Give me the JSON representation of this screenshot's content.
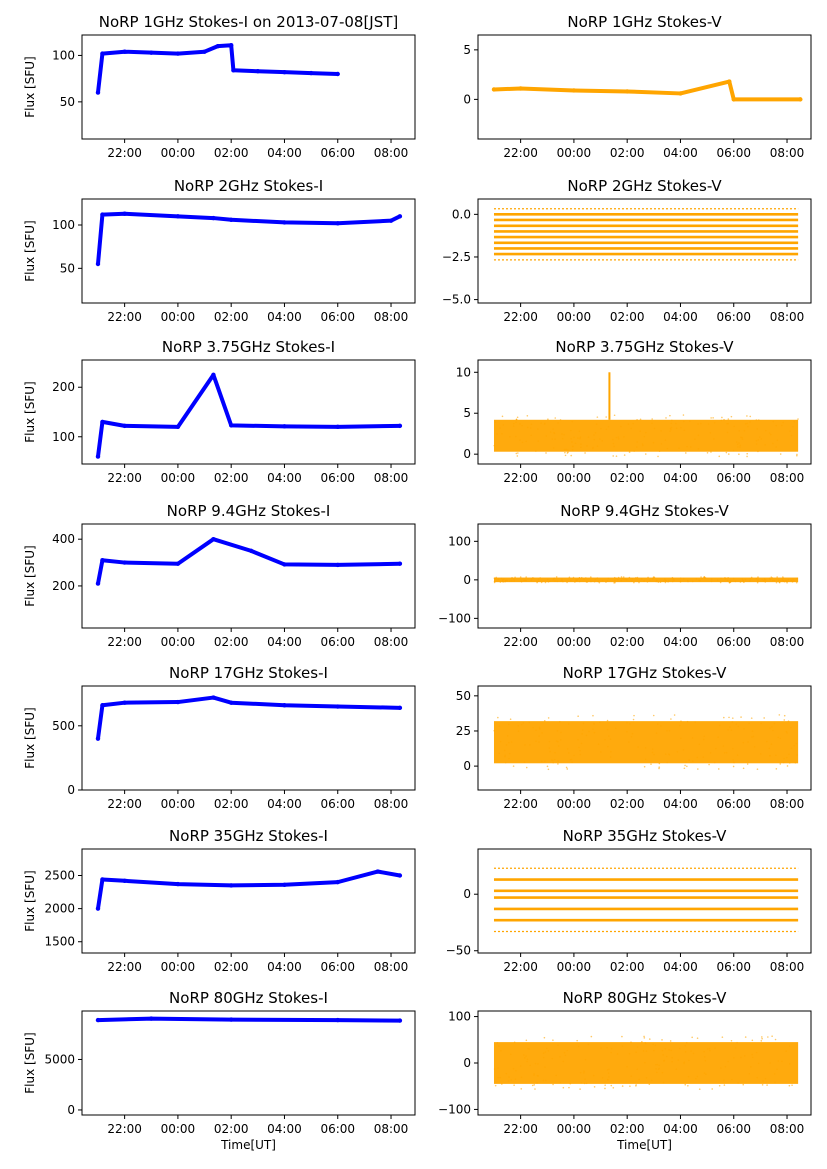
{
  "figure": {
    "xlabel": "Time[UT]",
    "x_ticks": [
      "22:00",
      "00:00",
      "02:00",
      "04:00",
      "06:00",
      "08:00"
    ],
    "ylabel_left": "Flux [SFU]"
  },
  "chart_data": [
    {
      "type": "scatter",
      "title": "NoRP 1GHz Stokes-I on 2013-07-08[JST]",
      "ylabel": "Flux [SFU]",
      "color": "#0000ff",
      "ylim": [
        10,
        122
      ],
      "yticks": [
        50,
        100
      ],
      "yticklabels": [
        "50",
        "100"
      ],
      "x": [
        "21:00",
        "21:10",
        "22:00",
        "23:00",
        "00:00",
        "01:00",
        "01:30",
        "02:00",
        "02:05",
        "03:00",
        "04:00",
        "05:00",
        "06:00"
      ],
      "y": [
        60,
        102,
        104,
        103,
        102,
        104,
        110,
        111,
        84,
        83,
        82,
        81,
        80
      ]
    },
    {
      "type": "scatter",
      "title": "NoRP 1GHz Stokes-V",
      "ylabel": "",
      "color": "#ffa500",
      "ylim": [
        -4,
        6.5
      ],
      "yticks": [
        0,
        5
      ],
      "yticklabels": [
        "0",
        "5"
      ],
      "x": [
        "21:00",
        "22:00",
        "00:00",
        "02:00",
        "04:00",
        "05:50",
        "06:00",
        "08:30"
      ],
      "y": [
        1.0,
        1.1,
        0.9,
        0.8,
        0.6,
        1.8,
        0,
        0
      ]
    },
    {
      "type": "scatter",
      "title": "NoRP 2GHz Stokes-I",
      "ylabel": "Flux [SFU]",
      "color": "#0000ff",
      "ylim": [
        10,
        130
      ],
      "yticks": [
        50,
        100
      ],
      "yticklabels": [
        "50",
        "100"
      ],
      "x": [
        "21:00",
        "21:10",
        "22:00",
        "00:00",
        "01:20",
        "02:00",
        "04:00",
        "06:00",
        "08:00",
        "08:20"
      ],
      "y": [
        55,
        112,
        113,
        110,
        108,
        106,
        103,
        102,
        105,
        110
      ]
    },
    {
      "type": "scatter",
      "title": "NoRP 2GHz Stokes-V",
      "ylabel": "",
      "color": "#ffa500",
      "ylim": [
        -5.2,
        0.9
      ],
      "yticks": [
        -5.0,
        -2.5,
        0.0
      ],
      "yticklabels": [
        "−5.0",
        "−2.5",
        "0.0"
      ],
      "levels": [
        0.33,
        0,
        -0.33,
        -0.67,
        -1.0,
        -1.33,
        -1.67,
        -2.0,
        -2.33,
        -2.67
      ]
    },
    {
      "type": "scatter",
      "title": "NoRP 3.75GHz Stokes-I",
      "ylabel": "Flux [SFU]",
      "color": "#0000ff",
      "ylim": [
        45,
        255
      ],
      "yticks": [
        100,
        200
      ],
      "yticklabels": [
        "100",
        "200"
      ],
      "x": [
        "21:00",
        "21:10",
        "22:00",
        "00:00",
        "01:20",
        "02:00",
        "04:00",
        "06:00",
        "08:20"
      ],
      "y": [
        60,
        130,
        122,
        120,
        225,
        123,
        121,
        120,
        122
      ]
    },
    {
      "type": "scatter",
      "title": "NoRP 3.75GHz Stokes-V",
      "ylabel": "",
      "color": "#ffa500",
      "ylim": [
        -1.2,
        11.5
      ],
      "yticks": [
        0,
        5,
        10
      ],
      "yticklabels": [
        "0",
        "5",
        "10"
      ],
      "band": [
        0.3,
        4.2
      ],
      "spike": {
        "x": "01:20",
        "y": 10.0
      }
    },
    {
      "type": "scatter",
      "title": "NoRP 9.4GHz Stokes-I",
      "ylabel": "Flux [SFU]",
      "color": "#0000ff",
      "ylim": [
        20,
        465
      ],
      "yticks": [
        200,
        400
      ],
      "yticklabels": [
        "200",
        "400"
      ],
      "x": [
        "21:00",
        "21:10",
        "22:00",
        "00:00",
        "01:20",
        "02:45",
        "04:00",
        "06:00",
        "08:20"
      ],
      "y": [
        210,
        310,
        300,
        295,
        400,
        350,
        292,
        290,
        295
      ]
    },
    {
      "type": "scatter",
      "title": "NoRP 9.4GHz Stokes-V",
      "ylabel": "",
      "color": "#ffa500",
      "ylim": [
        -125,
        145
      ],
      "yticks": [
        -100,
        0,
        100
      ],
      "yticklabels": [
        "−100",
        "0",
        "100"
      ],
      "band": [
        -6,
        6
      ]
    },
    {
      "type": "scatter",
      "title": "NoRP 17GHz Stokes-I",
      "ylabel": "Flux [SFU]",
      "color": "#0000ff",
      "ylim": [
        0,
        810
      ],
      "yticks": [
        0,
        500
      ],
      "yticklabels": [
        "0",
        "500"
      ],
      "x": [
        "21:00",
        "21:10",
        "22:00",
        "00:00",
        "01:20",
        "02:00",
        "04:00",
        "06:00",
        "08:20"
      ],
      "y": [
        400,
        660,
        680,
        685,
        720,
        680,
        660,
        650,
        640
      ]
    },
    {
      "type": "scatter",
      "title": "NoRP 17GHz Stokes-V",
      "ylabel": "",
      "color": "#ffa500",
      "ylim": [
        -17,
        57
      ],
      "yticks": [
        0,
        25,
        50
      ],
      "yticklabels": [
        "0",
        "25",
        "50"
      ],
      "band": [
        2,
        32
      ]
    },
    {
      "type": "scatter",
      "title": "NoRP 35GHz Stokes-I",
      "ylabel": "Flux [SFU]",
      "color": "#0000ff",
      "ylim": [
        1330,
        2900
      ],
      "yticks": [
        1500,
        2000,
        2500
      ],
      "yticklabels": [
        "1500",
        "2000",
        "2500"
      ],
      "x": [
        "21:00",
        "21:10",
        "22:00",
        "00:00",
        "02:00",
        "04:00",
        "06:00",
        "07:30",
        "08:20"
      ],
      "y": [
        2000,
        2440,
        2420,
        2370,
        2350,
        2360,
        2400,
        2560,
        2500
      ]
    },
    {
      "type": "scatter",
      "title": "NoRP 35GHz Stokes-V",
      "ylabel": "",
      "color": "#ffa500",
      "ylim": [
        -52,
        40
      ],
      "yticks": [
        -50,
        0
      ],
      "yticklabels": [
        "−50",
        "0"
      ],
      "levels": [
        23,
        13,
        3,
        -3,
        -13,
        -23,
        -33
      ]
    },
    {
      "type": "scatter",
      "title": "NoRP 80GHz Stokes-I",
      "ylabel": "Flux [SFU]",
      "color": "#0000ff",
      "ylim": [
        -500,
        9800
      ],
      "yticks": [
        0,
        5000
      ],
      "yticklabels": [
        "0",
        "5000"
      ],
      "x": [
        "21:00",
        "23:00",
        "02:00",
        "06:00",
        "08:20"
      ],
      "y": [
        8900,
        9050,
        8950,
        8900,
        8850
      ]
    },
    {
      "type": "scatter",
      "title": "NoRP 80GHz Stokes-V",
      "ylabel": "",
      "color": "#ffa500",
      "ylim": [
        -112,
        112
      ],
      "yticks": [
        -100,
        0,
        100
      ],
      "yticklabels": [
        "−100",
        "0",
        "100"
      ],
      "band": [
        -45,
        45
      ]
    }
  ]
}
